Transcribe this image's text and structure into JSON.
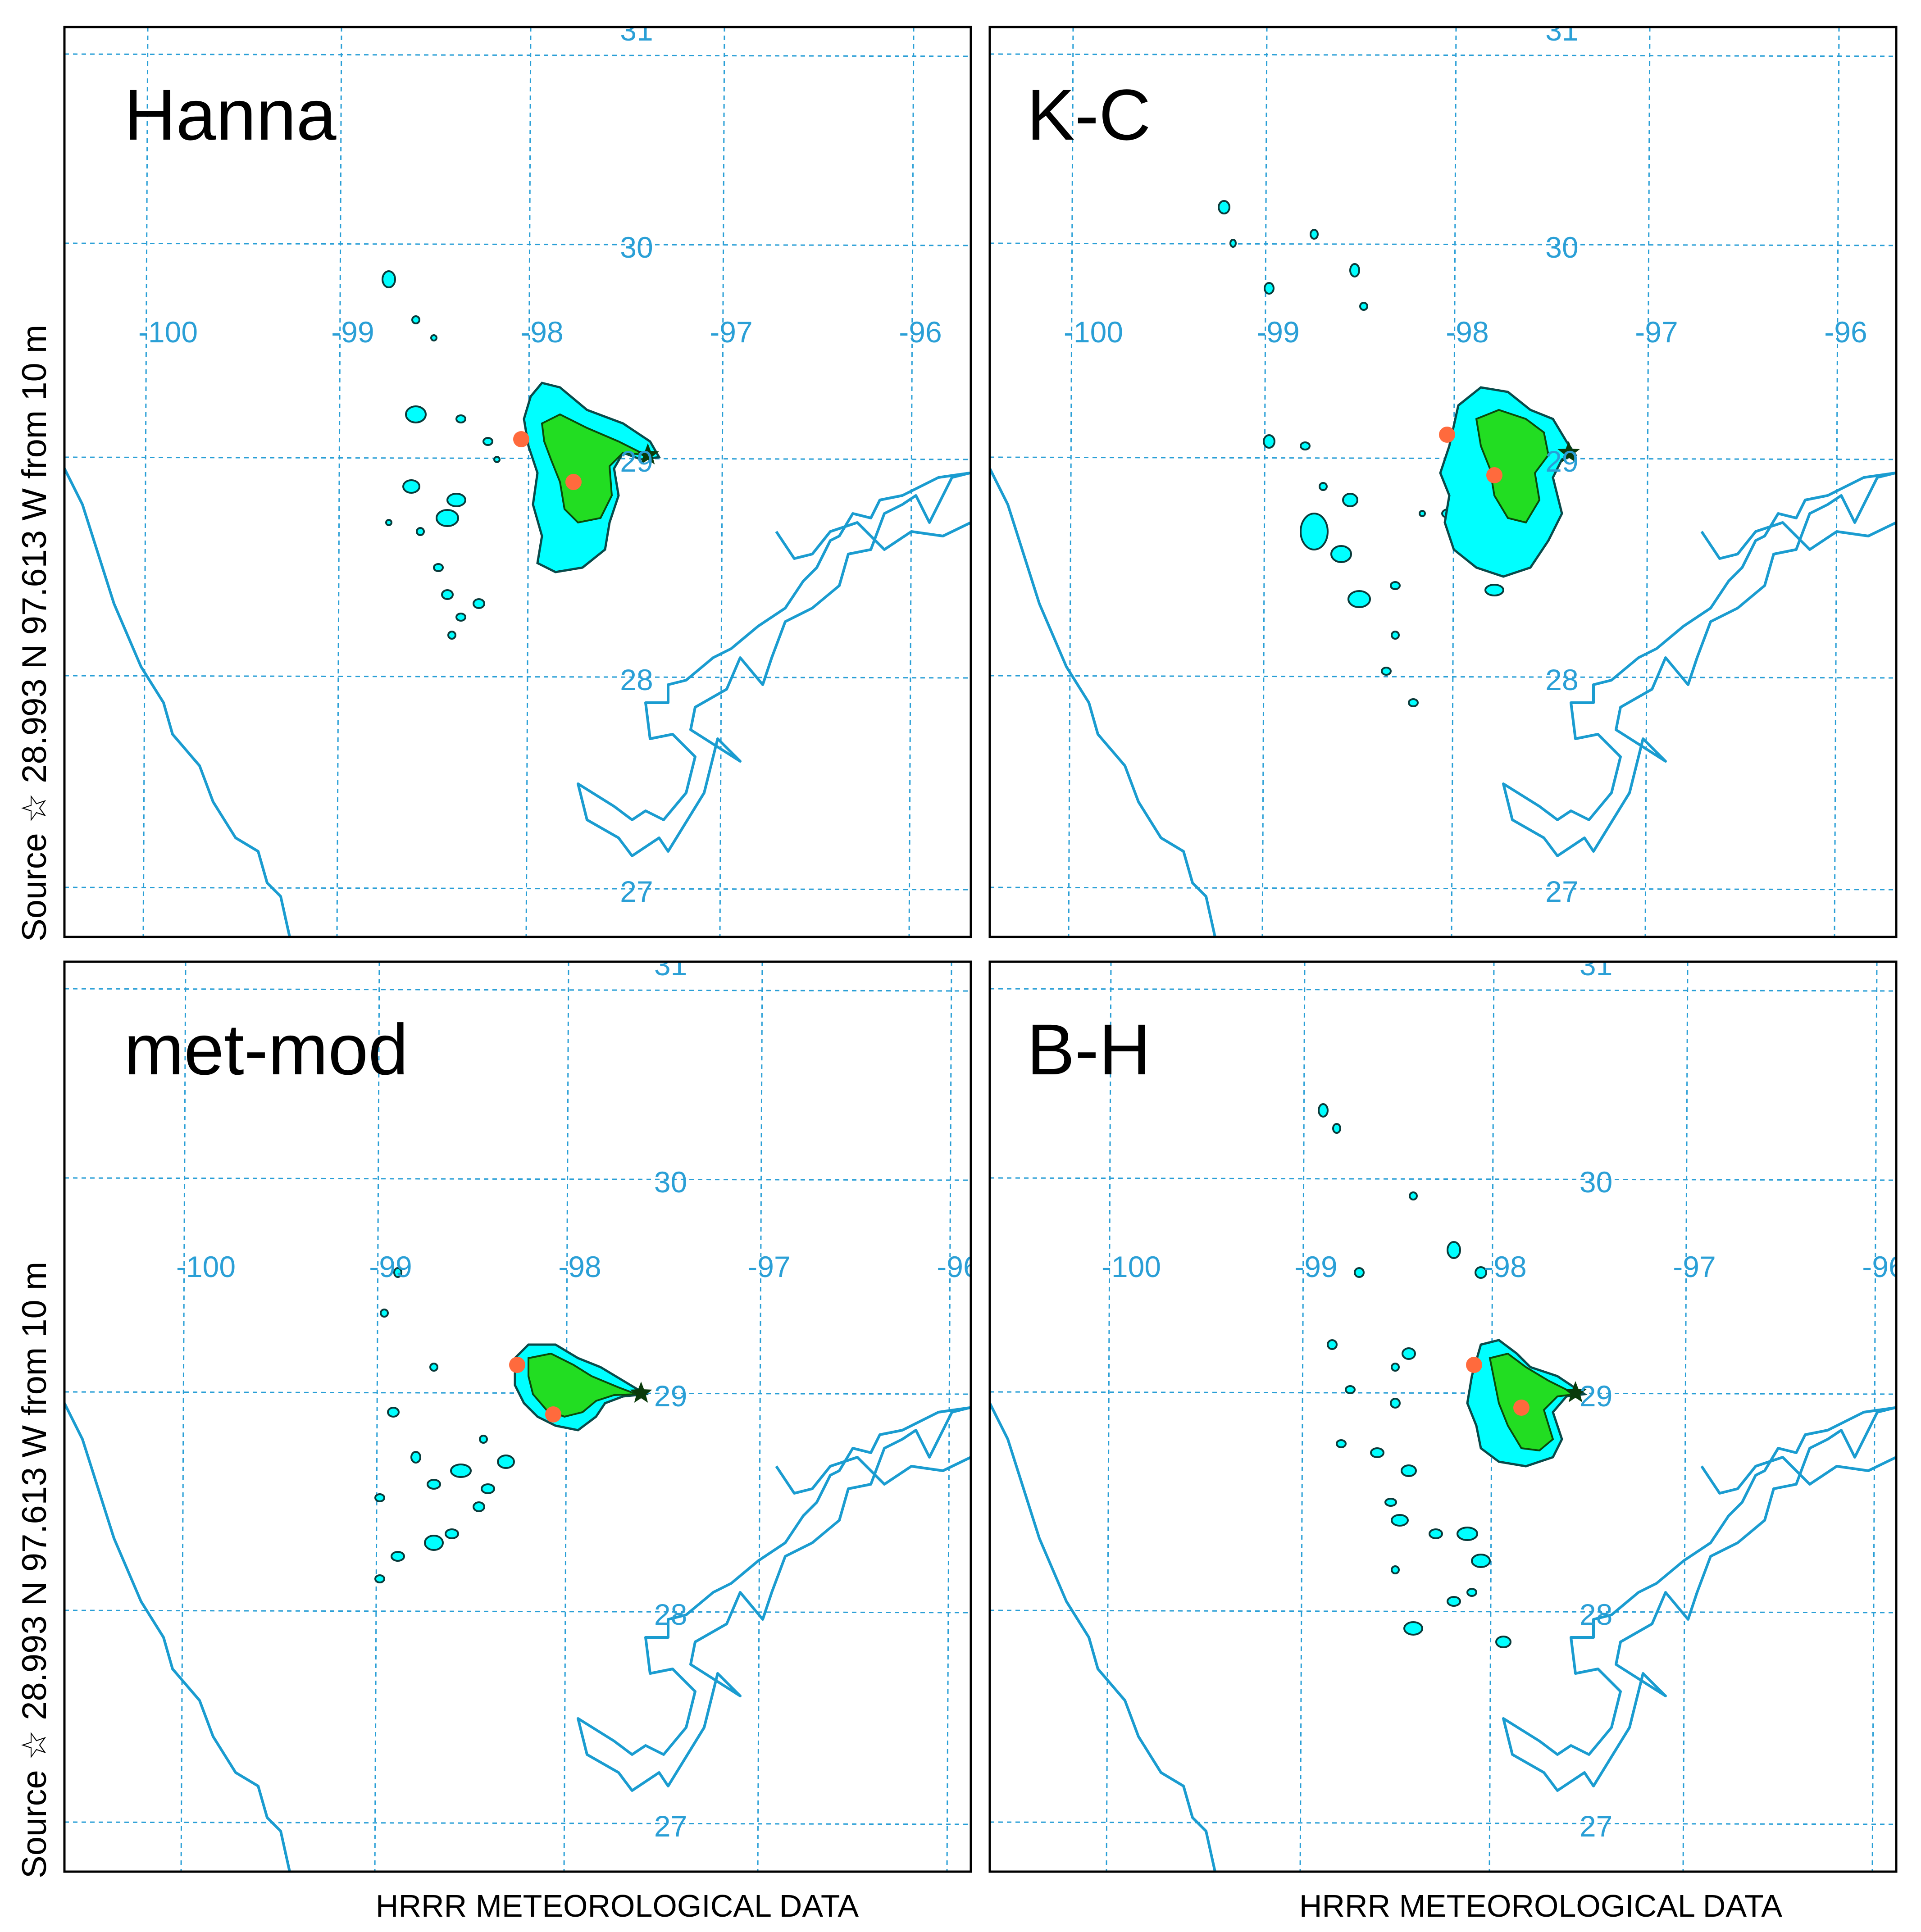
{
  "footer_label": "HRRR METEOROLOGICAL DATA",
  "side_label": "Source ☆ 28.993 N 97.613 W from 10 m",
  "panels": [
    {
      "id": "hanna",
      "title": "Hanna"
    },
    {
      "id": "kc",
      "title": "K-C"
    },
    {
      "id": "metmod",
      "title": "met-mod"
    },
    {
      "id": "bh",
      "title": "B-H"
    }
  ],
  "longitude_labels": [
    "-100",
    "-99",
    "-98",
    "-97",
    "-96"
  ],
  "latitude_labels": [
    "31",
    "30",
    "29",
    "28",
    "27"
  ],
  "colors": {
    "grid": "#2a9fd6",
    "coastline": "#1a9cd0",
    "plume_low": "#00ffff",
    "plume_high": "#22dd22",
    "observation_marker": "#ff6a3d"
  },
  "source_location": {
    "lat": 28.993,
    "lon": -97.613
  }
}
